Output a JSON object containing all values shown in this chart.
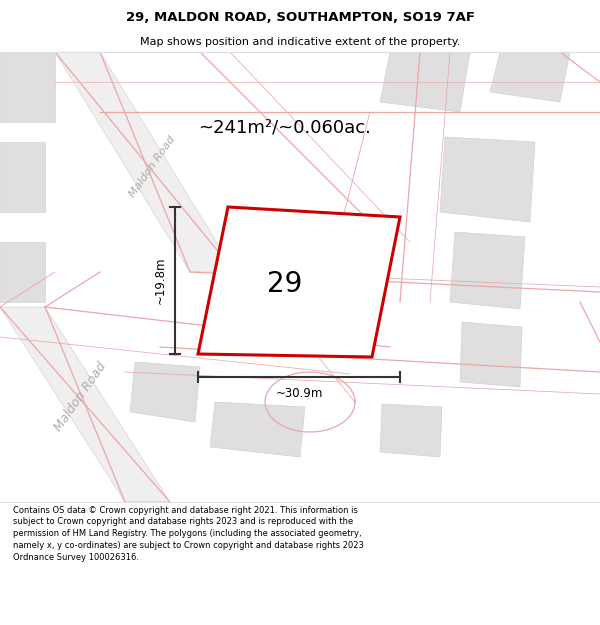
{
  "title_line1": "29, MALDON ROAD, SOUTHAMPTON, SO19 7AF",
  "title_line2": "Map shows position and indicative extent of the property.",
  "area_text": "~241m²/~0.060ac.",
  "property_number": "29",
  "dim_width": "~30.9m",
  "dim_height": "~19.8m",
  "road_label_upper": "Maldon Road",
  "road_label_lower": "Maldon Road",
  "footer_text": "Contains OS data © Crown copyright and database right 2021. This information is subject to Crown copyright and database rights 2023 and is reproduced with the permission of HM Land Registry. The polygons (including the associated geometry, namely x, y co-ordinates) are subject to Crown copyright and database rights 2023 Ordnance Survey 100026316.",
  "map_bg": "#ffffff",
  "road_line_color": "#e8a8a8",
  "road_band_color": "#e8e8e8",
  "building_fill": "#e0dede",
  "building_edge": "#e8a8a8",
  "property_fill": "#ffffff",
  "property_edge": "#cc0000",
  "dim_color": "#333333",
  "text_color": "#000000",
  "road_text_color": "#b0aaaa",
  "header_bg": "#ffffff",
  "footer_bg": "#ffffff"
}
